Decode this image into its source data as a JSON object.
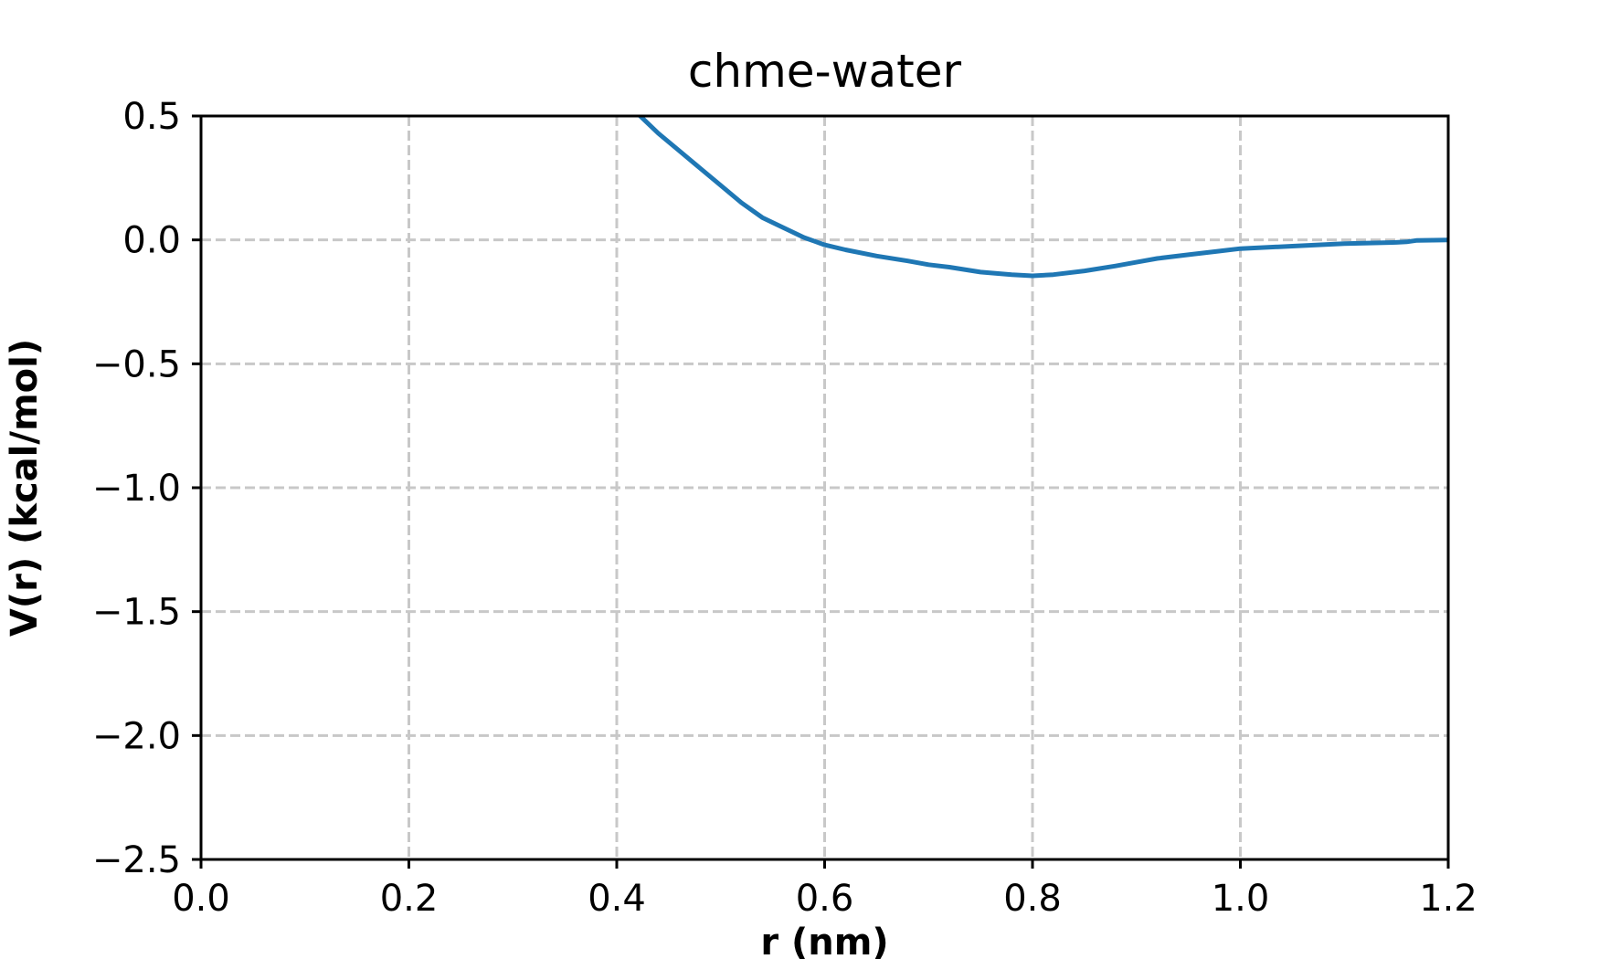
{
  "chart_data": {
    "type": "line",
    "title": "chme-water",
    "xlabel": "r (nm)",
    "ylabel": "V(r) (kcal/mol)",
    "xlim": [
      0.0,
      1.2
    ],
    "ylim": [
      -2.5,
      0.5
    ],
    "xticks": [
      "0.0",
      "0.2",
      "0.4",
      "0.6",
      "0.8",
      "1.0",
      "1.2"
    ],
    "yticks": [
      "0.5",
      "0.0",
      "−0.5",
      "−1.0",
      "−1.5",
      "−2.0",
      "−2.5"
    ],
    "xtick_values": [
      0.0,
      0.2,
      0.4,
      0.6,
      0.8,
      1.0,
      1.2
    ],
    "ytick_values": [
      0.5,
      0.0,
      -0.5,
      -1.0,
      -1.5,
      -2.0,
      -2.5
    ],
    "grid": true,
    "series": [
      {
        "color": "#1f77b4",
        "x": [
          0.42,
          0.44,
          0.46,
          0.48,
          0.5,
          0.52,
          0.54,
          0.56,
          0.58,
          0.6,
          0.62,
          0.65,
          0.68,
          0.7,
          0.72,
          0.75,
          0.78,
          0.8,
          0.82,
          0.85,
          0.88,
          0.9,
          0.92,
          0.95,
          0.98,
          1.0,
          1.05,
          1.1,
          1.15,
          1.16,
          1.17,
          1.2
        ],
        "y": [
          0.51,
          0.43,
          0.36,
          0.29,
          0.22,
          0.15,
          0.09,
          0.05,
          0.01,
          -0.02,
          -0.04,
          -0.065,
          -0.085,
          -0.1,
          -0.11,
          -0.13,
          -0.14,
          -0.145,
          -0.14,
          -0.125,
          -0.105,
          -0.09,
          -0.075,
          -0.06,
          -0.045,
          -0.035,
          -0.025,
          -0.015,
          -0.01,
          -0.008,
          -0.002,
          0.0
        ]
      }
    ]
  }
}
